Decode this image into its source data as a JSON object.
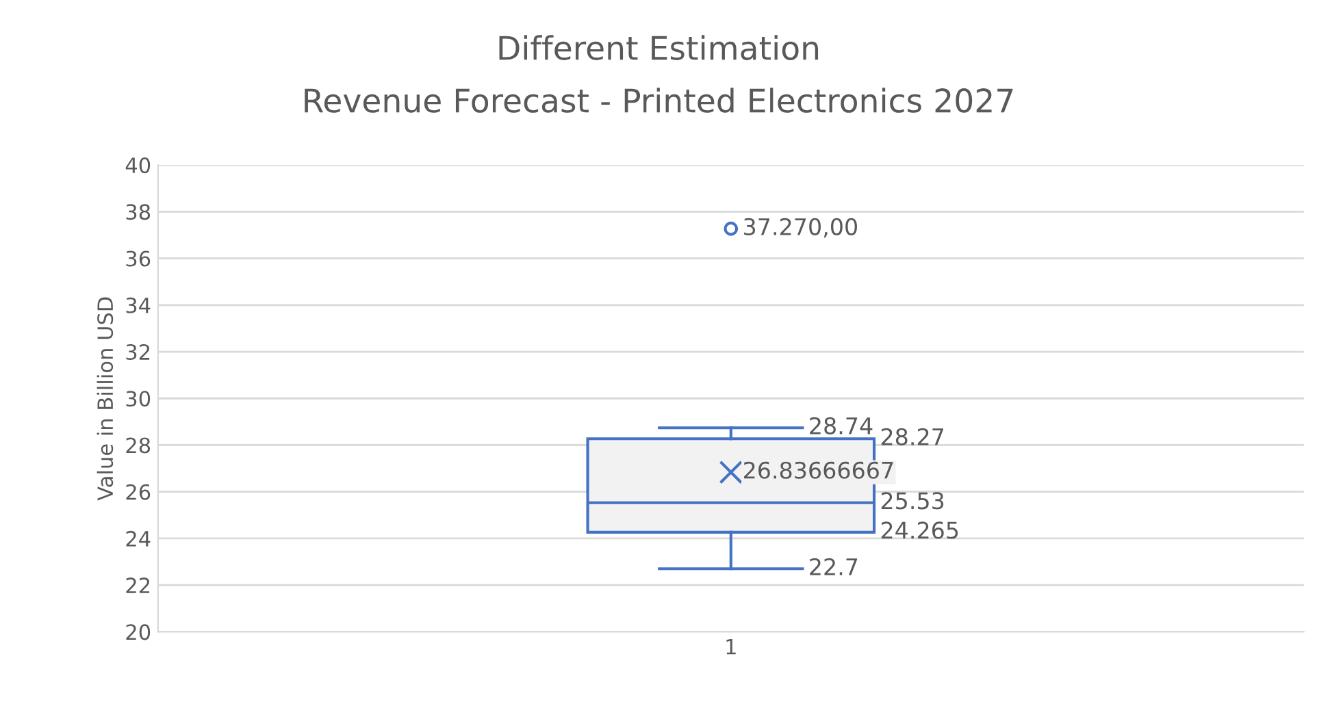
{
  "chart_data": {
    "type": "box",
    "title": "Different Estimation",
    "subtitle": "Revenue Forecast - Printed Electronics 2027",
    "ylabel": "Value in Billion USD",
    "categories": [
      "1"
    ],
    "series": [
      {
        "color": "#4472c4",
        "boxes": [
          {
            "low": 22.7,
            "q1": 24.265,
            "median": 25.53,
            "q3": 28.27,
            "high": 28.74,
            "mean": 26.83666667,
            "outliers": [
              37.27
            ]
          }
        ]
      }
    ],
    "ylim": [
      20,
      40
    ],
    "yticks": [
      20,
      22,
      24,
      26,
      28,
      30,
      32,
      34,
      36,
      38,
      40
    ],
    "grid": "y",
    "legend": false,
    "annotations": [
      "37.270,00",
      "28.74",
      "28.27",
      "26.83666667",
      "25.53",
      "24.265",
      "22.7"
    ]
  }
}
